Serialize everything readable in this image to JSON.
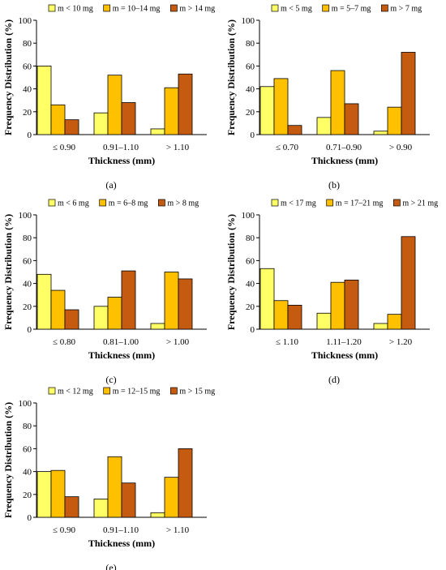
{
  "colors": {
    "low": "#ffff66",
    "mid": "#ffc000",
    "high": "#c55a11",
    "outline": "#000000"
  },
  "chart_data": [
    {
      "type": "bar",
      "panel_label": "(a)",
      "categories": [
        "≤ 0.90",
        "0.91–1.10",
        "> 1.10"
      ],
      "series": [
        {
          "name": "m < 10 mg",
          "values": [
            60,
            19,
            5
          ]
        },
        {
          "name": "m = 10–14 mg",
          "values": [
            26,
            52,
            41
          ]
        },
        {
          "name": "m > 14 mg",
          "values": [
            13,
            28,
            53
          ]
        }
      ],
      "xlabel": "Thickness (mm)",
      "ylabel": "Frequency Distribution (%)",
      "ylim": [
        0,
        100
      ],
      "yticks": [
        0,
        20,
        40,
        60,
        80,
        100
      ],
      "grid": false,
      "legend": "top"
    },
    {
      "type": "bar",
      "panel_label": "(b)",
      "categories": [
        "≤ 0.70",
        "0.71–0.90",
        "> 0.90"
      ],
      "series": [
        {
          "name": "m < 5 mg",
          "values": [
            42,
            15,
            3
          ]
        },
        {
          "name": "m = 5–7 mg",
          "values": [
            49,
            56,
            24
          ]
        },
        {
          "name": "m > 7 mg",
          "values": [
            8,
            27,
            72
          ]
        }
      ],
      "xlabel": "Thickness (mm)",
      "ylabel": "Frequency Distribution (%)",
      "ylim": [
        0,
        100
      ],
      "yticks": [
        0,
        20,
        40,
        60,
        80,
        100
      ],
      "grid": false,
      "legend": "top"
    },
    {
      "type": "bar",
      "panel_label": "(c)",
      "categories": [
        "≤ 0.80",
        "0.81–1.00",
        "> 1.00"
      ],
      "series": [
        {
          "name": "m < 6 mg",
          "values": [
            48,
            20,
            5
          ]
        },
        {
          "name": "m = 6–8 mg",
          "values": [
            34,
            28,
            50
          ]
        },
        {
          "name": "m > 8 mg",
          "values": [
            17,
            51,
            44
          ]
        }
      ],
      "xlabel": "Thickness (mm)",
      "ylabel": "Frequency Distribution (%)",
      "ylim": [
        0,
        100
      ],
      "yticks": [
        0,
        20,
        40,
        60,
        80,
        100
      ],
      "grid": false,
      "legend": "top"
    },
    {
      "type": "bar",
      "panel_label": "(d)",
      "categories": [
        "≤ 1.10",
        "1.11–1.20",
        "> 1.20"
      ],
      "series": [
        {
          "name": "m < 17 mg",
          "values": [
            53,
            14,
            5
          ]
        },
        {
          "name": "m = 17–21 mg",
          "values": [
            25,
            41,
            13
          ]
        },
        {
          "name": "m > 21 mg",
          "values": [
            21,
            43,
            81
          ]
        }
      ],
      "xlabel": "Thickness (mm)",
      "ylabel": "Frequency Distribution (%)",
      "ylim": [
        0,
        100
      ],
      "yticks": [
        0,
        20,
        40,
        60,
        80,
        100
      ],
      "grid": false,
      "legend": "top"
    },
    {
      "type": "bar",
      "panel_label": "(e)",
      "categories": [
        "≤ 0.90",
        "0.91–1.10",
        "> 1.10"
      ],
      "series": [
        {
          "name": "m < 12 mg",
          "values": [
            40,
            16,
            4
          ]
        },
        {
          "name": "m = 12–15 mg",
          "values": [
            41,
            53,
            35
          ]
        },
        {
          "name": "m > 15 mg",
          "values": [
            18,
            30,
            60
          ]
        }
      ],
      "xlabel": "Thickness (mm)",
      "ylabel": "Frequency Distribution (%)",
      "ylim": [
        0,
        100
      ],
      "yticks": [
        0,
        20,
        40,
        60,
        80,
        100
      ],
      "grid": false,
      "legend": "top"
    }
  ]
}
